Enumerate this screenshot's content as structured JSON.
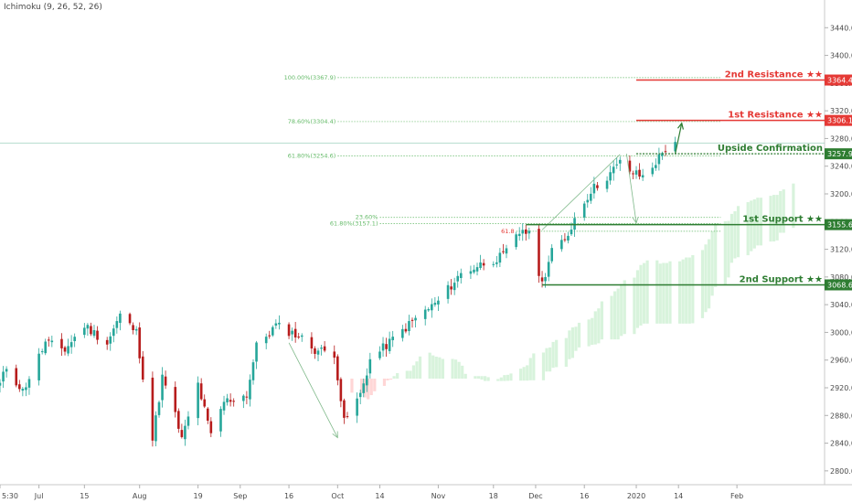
{
  "indicator_label": "Ichimoku (9, 26, 52, 26)",
  "colors": {
    "up": "#26a69a",
    "down": "#b71c1c",
    "resistance": "#e53935",
    "support": "#2e7d32",
    "fib": "#66bb6a",
    "cloud_bull": "#d8f3dc",
    "cloud_bear": "#ffd6d6",
    "arrow": "#7fb98a"
  },
  "chart_data": {
    "type": "candlestick",
    "y_axis": {
      "side": "right",
      "range": [
        2780,
        3480
      ],
      "ticks": [
        2800,
        2840,
        2880,
        2920,
        2960,
        3000,
        3040,
        3080,
        3120,
        3160,
        3200,
        3240,
        3280,
        3320,
        3360,
        3400,
        3440
      ],
      "tick_labels": [
        "2800.0",
        "2840.0",
        "2880.0",
        "2920.0",
        "2960.0",
        "3000.0",
        "3040.0",
        "3080.0",
        "3120.0",
        "3160.0",
        "3200.0",
        "3240.0",
        "3280.0",
        "3320.0",
        "3360.0",
        "3400.0",
        "3440.0"
      ]
    },
    "x_axis": {
      "range": [
        "2019-06-19",
        "2020-02-28"
      ],
      "ticks": [
        {
          "date": "2019-06-19",
          "label": "5:30"
        },
        {
          "date": "2019-07-01",
          "label": "Jul"
        },
        {
          "date": "2019-07-15",
          "label": "15"
        },
        {
          "date": "2019-08-01",
          "label": "Aug"
        },
        {
          "date": "2019-08-19",
          "label": "19"
        },
        {
          "date": "2019-09-01",
          "label": "Sep"
        },
        {
          "date": "2019-09-16",
          "label": "16"
        },
        {
          "date": "2019-10-01",
          "label": "Oct"
        },
        {
          "date": "2019-10-14",
          "label": "14"
        },
        {
          "date": "2019-11-01",
          "label": "Nov"
        },
        {
          "date": "2019-11-18",
          "label": "18"
        },
        {
          "date": "2019-12-01",
          "label": "Dec"
        },
        {
          "date": "2019-12-16",
          "label": "16"
        },
        {
          "date": "2020-01-01",
          "label": "2020"
        },
        {
          "date": "2020-01-14",
          "label": "14"
        },
        {
          "date": "2020-02-01",
          "label": "Feb"
        }
      ]
    },
    "key_points": [
      {
        "date": "2019-06-19",
        "value": 2925
      },
      {
        "date": "2019-06-21",
        "value": 2950
      },
      {
        "date": "2019-06-26",
        "value": 2915
      },
      {
        "date": "2019-07-03",
        "value": 2985
      },
      {
        "date": "2019-07-09",
        "value": 2975
      },
      {
        "date": "2019-07-15",
        "value": 3010
      },
      {
        "date": "2019-07-22",
        "value": 2985
      },
      {
        "date": "2019-07-26",
        "value": 3025
      },
      {
        "date": "2019-07-31",
        "value": 3000
      },
      {
        "date": "2019-08-05",
        "value": 2845
      },
      {
        "date": "2019-08-08",
        "value": 2935
      },
      {
        "date": "2019-08-12",
        "value": 2880
      },
      {
        "date": "2019-08-14",
        "value": 2845
      },
      {
        "date": "2019-08-19",
        "value": 2925
      },
      {
        "date": "2019-08-23",
        "value": 2850
      },
      {
        "date": "2019-08-27",
        "value": 2900
      },
      {
        "date": "2019-09-03",
        "value": 2910
      },
      {
        "date": "2019-09-06",
        "value": 2980
      },
      {
        "date": "2019-09-12",
        "value": 3010
      },
      {
        "date": "2019-09-19",
        "value": 2995
      },
      {
        "date": "2019-09-24",
        "value": 2975
      },
      {
        "date": "2019-09-30",
        "value": 2970
      },
      {
        "date": "2019-10-03",
        "value": 2870
      },
      {
        "date": "2019-10-08",
        "value": 2910
      },
      {
        "date": "2019-10-11",
        "value": 2960
      },
      {
        "date": "2019-10-18",
        "value": 2990
      },
      {
        "date": "2019-10-25",
        "value": 3020
      },
      {
        "date": "2019-11-01",
        "value": 3045
      },
      {
        "date": "2019-11-08",
        "value": 3085
      },
      {
        "date": "2019-11-15",
        "value": 3100
      },
      {
        "date": "2019-11-21",
        "value": 3110
      },
      {
        "date": "2019-11-27",
        "value": 3150
      },
      {
        "date": "2019-11-29",
        "value": 3140
      },
      {
        "date": "2019-12-03",
        "value": 3070
      },
      {
        "date": "2019-12-06",
        "value": 3120
      },
      {
        "date": "2019-12-10",
        "value": 3130
      },
      {
        "date": "2019-12-13",
        "value": 3165
      },
      {
        "date": "2019-12-18",
        "value": 3205
      },
      {
        "date": "2019-12-23",
        "value": 3225
      },
      {
        "date": "2019-12-27",
        "value": 3245
      },
      {
        "date": "2019-12-31",
        "value": 3230
      },
      {
        "date": "2020-01-03",
        "value": 3225
      },
      {
        "date": "2020-01-06",
        "value": 3240
      },
      {
        "date": "2020-01-10",
        "value": 3265
      },
      {
        "date": "2020-01-13",
        "value": 3275
      }
    ],
    "levels": [
      {
        "name": "2nd Resistance ★★",
        "value": 3364.4,
        "tag": "3364.4",
        "kind": "resistance",
        "from": "2020-01-01"
      },
      {
        "name": "1st Resistance ★★",
        "value": 3306.1,
        "tag": "3306.1",
        "kind": "resistance",
        "from": "2020-01-01"
      },
      {
        "name": "Upside Confirmation",
        "value": 3257.9,
        "tag": "3257.9",
        "kind": "support",
        "from": "2020-01-01",
        "dashed": true
      },
      {
        "name": "1st Support ★★",
        "value": 3155.6,
        "tag": "3155.6",
        "kind": "support",
        "from": "2019-11-28"
      },
      {
        "name": "2nd Support ★★",
        "value": 3068.6,
        "tag": "3068.6",
        "kind": "support",
        "from": "2019-12-03"
      }
    ],
    "fibonacci": [
      {
        "label": "100.00%(3367.9)",
        "value": 3367.9,
        "from": "2019-10-01",
        "to": "2020-01-27"
      },
      {
        "label": "78.60%(3304.4)",
        "value": 3304.4,
        "from": "2019-10-01",
        "to": "2020-01-27"
      },
      {
        "label": "61.80%(3254.6)",
        "value": 3254.6,
        "from": "2019-10-01",
        "to": "2020-01-27"
      },
      {
        "label": "23.60%",
        "value": 3166,
        "from": "2019-10-14",
        "to": "2020-01-27"
      },
      {
        "label": "61.80%(3157.1)",
        "value": 3157.1,
        "from": "2019-10-14",
        "to": "2020-01-27"
      },
      {
        "label": "61.8",
        "value": 3146,
        "from": "2019-11-25",
        "to": "2020-01-27"
      }
    ],
    "arrows": [
      {
        "from": {
          "date": "2019-09-16",
          "value": 2985
        },
        "to": {
          "date": "2019-10-01",
          "value": 2848
        },
        "tip": "arrowhead"
      },
      {
        "from": {
          "date": "2019-12-29",
          "value": 3258
        },
        "to": {
          "date": "2020-01-01",
          "value": 3158
        },
        "tip": "arrowhead"
      },
      {
        "from": {
          "date": "2020-01-13",
          "value": 3258
        },
        "to": {
          "date": "2020-01-15",
          "value": 3302
        },
        "tip": "arrowhead"
      }
    ],
    "triangle": [
      {
        "date": "2019-12-03",
        "value": 3148
      },
      {
        "date": "2019-12-27",
        "value": 3257
      }
    ],
    "current_price_line": 3273
  }
}
